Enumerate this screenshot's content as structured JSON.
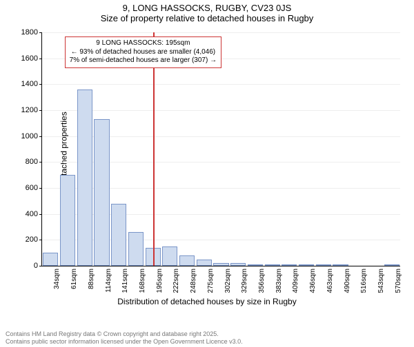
{
  "titles": {
    "line1": "9, LONG HASSOCKS, RUGBY, CV23 0JS",
    "line2": "Size of property relative to detached houses in Rugby"
  },
  "axes": {
    "ylabel": "Number of detached properties",
    "xlabel": "Distribution of detached houses by size in Rugby",
    "ylim": [
      0,
      1800
    ],
    "ytick_step": 200,
    "label_fontsize": 12,
    "tick_fontsize": 11
  },
  "chart": {
    "type": "histogram",
    "bar_color": "#cedbef",
    "bar_border": "#7a95c8",
    "bar_width": 0.9,
    "background_color": "#ffffff",
    "grid_color": "#eeeeee",
    "categories": [
      "34sqm",
      "61sqm",
      "88sqm",
      "114sqm",
      "141sqm",
      "168sqm",
      "195sqm",
      "222sqm",
      "248sqm",
      "275sqm",
      "302sqm",
      "329sqm",
      "356sqm",
      "383sqm",
      "409sqm",
      "436sqm",
      "463sqm",
      "490sqm",
      "516sqm",
      "543sqm",
      "570sqm"
    ],
    "values": [
      100,
      700,
      1360,
      1130,
      480,
      260,
      140,
      150,
      80,
      50,
      20,
      20,
      10,
      10,
      10,
      10,
      5,
      5,
      0,
      0,
      5
    ]
  },
  "marker": {
    "index": 6,
    "line_color": "#cc3333",
    "annotation": {
      "lines": {
        "l1": "9 LONG HASSOCKS: 195sqm",
        "l2": "← 93% of detached houses are smaller (4,046)",
        "l3": "7% of semi-detached houses are larger (307) →"
      },
      "border_color": "#cc3333",
      "fontsize": 10
    }
  },
  "footnote": {
    "l1": "Contains HM Land Registry data © Crown copyright and database right 2025.",
    "l2": "Contains public sector information licensed under the Open Government Licence v3.0.",
    "color": "#777777"
  }
}
